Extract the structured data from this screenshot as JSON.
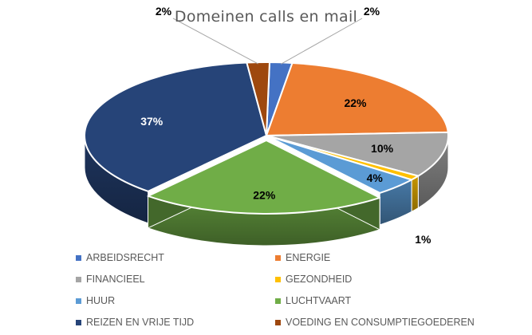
{
  "chart_data": {
    "type": "pie",
    "title": "Domeinen calls en mail",
    "slices": [
      {
        "label": "ARBEIDSRECHT",
        "value": 2,
        "display": "2%",
        "color": "#4472c4"
      },
      {
        "label": "ENERGIE",
        "value": 22,
        "display": "22%",
        "color": "#ed7d31"
      },
      {
        "label": "FINANCIEEL",
        "value": 10,
        "display": "10%",
        "color": "#a5a5a5"
      },
      {
        "label": "GEZONDHEID",
        "value": 1,
        "display": "1%",
        "color": "#ffc000"
      },
      {
        "label": "HUUR",
        "value": 4,
        "display": "4%",
        "color": "#5b9bd5"
      },
      {
        "label": "LUCHTVAART",
        "value": 22,
        "display": "22%",
        "color": "#70ad47"
      },
      {
        "label": "REIZEN EN VRIJE TIJD",
        "value": 37,
        "display": "37%",
        "color": "#264478"
      },
      {
        "label": "VOEDING EN CONSUMPTIEGOEDEREN",
        "value": 2,
        "display": "2%",
        "color": "#9e480e"
      }
    ],
    "legend_position": "bottom",
    "style": "3d"
  }
}
